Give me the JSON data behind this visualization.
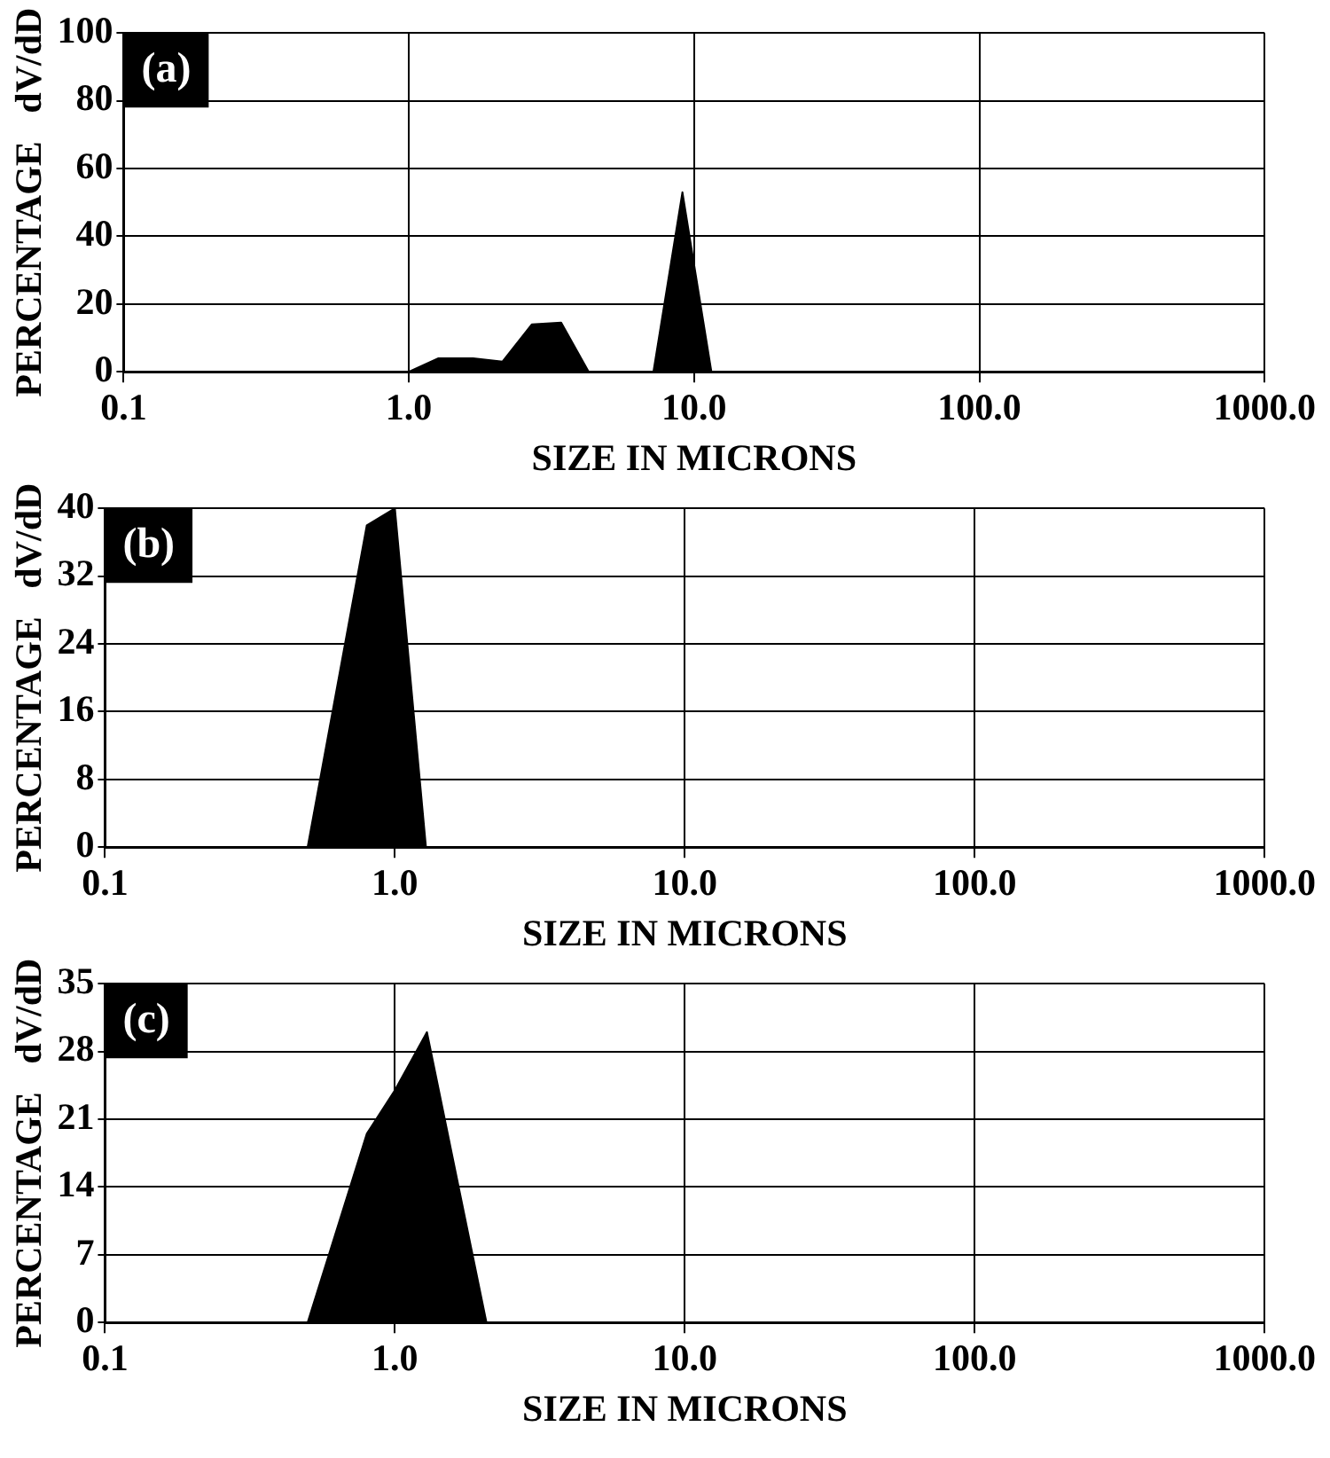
{
  "chart_data": [
    {
      "type": "area",
      "xlabel": "SIZE IN MICRONS",
      "ylabel": "PERCENTAGE   dV/dD",
      "annotations": [
        "(a)"
      ],
      "series": [
        {
          "color": "#000000",
          "x": [
            0.6,
            1.0,
            1.27,
            1.68,
            2.13,
            2.7,
            3.42,
            4.27,
            7.2,
            9.1,
            11.5
          ],
          "values": [
            0,
            0,
            4,
            4,
            3,
            14,
            14.5,
            0,
            0,
            53,
            0
          ]
        }
      ],
      "xlim": [
        0.1,
        1000
      ],
      "xticks": [
        {
          "value": 0.1,
          "label": "0.1"
        },
        {
          "value": 1,
          "label": "1.0"
        },
        {
          "value": 10,
          "label": "10.0"
        },
        {
          "value": 100,
          "label": "100.0"
        },
        {
          "value": 1000,
          "label": "1000.0"
        }
      ],
      "ylim": [
        0,
        100
      ],
      "yticks": [
        0,
        20,
        40,
        60,
        80,
        100
      ],
      "log": "x",
      "grid": true
    },
    {
      "type": "area",
      "xlabel": "SIZE IN MICRONS",
      "ylabel": "PERCENTAGE   dV/dD",
      "annotations": [
        "(b)"
      ],
      "series": [
        {
          "color": "#000000",
          "x": [
            0.13,
            0.5,
            0.8,
            1.0,
            1.28
          ],
          "values": [
            0,
            0,
            38,
            40,
            0
          ]
        }
      ],
      "xlim": [
        0.1,
        1000
      ],
      "xticks": [
        {
          "value": 0.1,
          "label": "0.1"
        },
        {
          "value": 1,
          "label": "1.0"
        },
        {
          "value": 10,
          "label": "10.0"
        },
        {
          "value": 100,
          "label": "100.0"
        },
        {
          "value": 1000,
          "label": "1000.0"
        }
      ],
      "ylim": [
        0,
        40
      ],
      "yticks": [
        0,
        8,
        16,
        24,
        32,
        40
      ],
      "log": "x",
      "grid": true
    },
    {
      "type": "area",
      "xlabel": "SIZE IN MICRONS",
      "ylabel": "PERCENTAGE   dV/dD",
      "annotations": [
        "(c)"
      ],
      "series": [
        {
          "color": "#000000",
          "x": [
            0.13,
            0.5,
            0.8,
            1.0,
            1.29,
            2.07
          ],
          "values": [
            0,
            0,
            19.5,
            24,
            30,
            0
          ]
        }
      ],
      "xlim": [
        0.1,
        1000
      ],
      "xticks": [
        {
          "value": 0.1,
          "label": "0.1"
        },
        {
          "value": 1,
          "label": "1.0"
        },
        {
          "value": 10,
          "label": "10.0"
        },
        {
          "value": 100,
          "label": "100.0"
        },
        {
          "value": 1000,
          "label": "1000.0"
        }
      ],
      "ylim": [
        0,
        35
      ],
      "yticks": [
        0,
        7,
        14,
        21,
        28,
        35
      ],
      "log": "x",
      "grid": true
    }
  ]
}
